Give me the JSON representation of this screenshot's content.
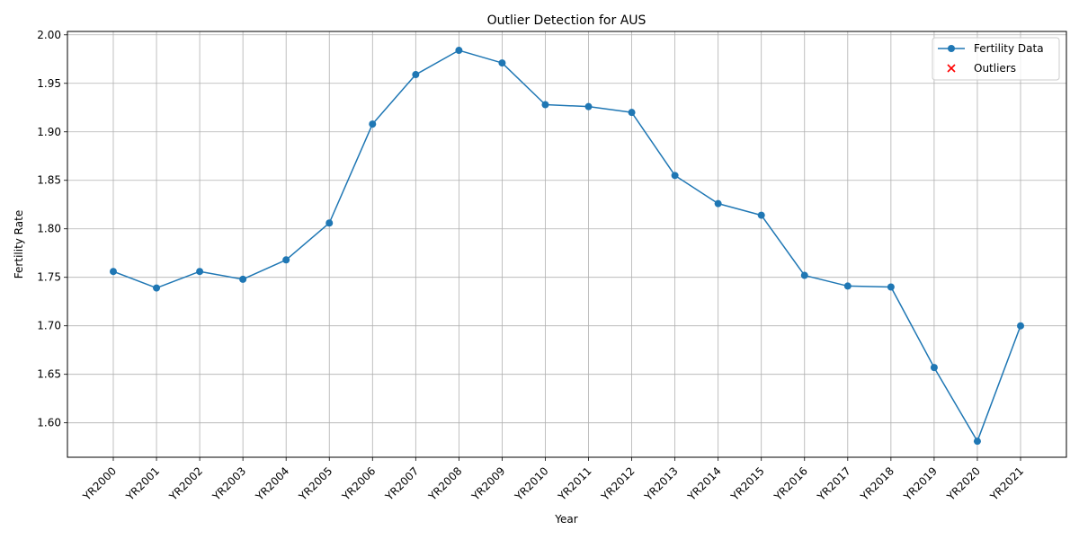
{
  "chart_data": {
    "type": "line",
    "title": "Outlier Detection for AUS",
    "xlabel": "Year",
    "ylabel": "Fertility Rate",
    "categories": [
      "YR2000",
      "YR2001",
      "YR2002",
      "YR2003",
      "YR2004",
      "YR2005",
      "YR2006",
      "YR2007",
      "YR2008",
      "YR2009",
      "YR2010",
      "YR2011",
      "YR2012",
      "YR2013",
      "YR2014",
      "YR2015",
      "YR2016",
      "YR2017",
      "YR2018",
      "YR2019",
      "YR2020",
      "YR2021"
    ],
    "series": [
      {
        "name": "Fertility Data",
        "color": "#1f77b4",
        "values": [
          1.756,
          1.739,
          1.756,
          1.748,
          1.768,
          1.806,
          1.908,
          1.959,
          1.984,
          1.971,
          1.928,
          1.926,
          1.92,
          1.855,
          1.826,
          1.814,
          1.752,
          1.741,
          1.74,
          1.657,
          1.581,
          1.7
        ]
      }
    ],
    "outliers": {
      "name": "Outliers",
      "color": "#ff0000",
      "marker": "x",
      "points": []
    },
    "ylim": [
      1.5645,
      2.0035
    ],
    "yticks": [
      "1.60",
      "1.65",
      "1.70",
      "1.75",
      "1.80",
      "1.85",
      "1.90",
      "1.95",
      "2.00"
    ],
    "ytick_values": [
      1.6,
      1.65,
      1.7,
      1.75,
      1.8,
      1.85,
      1.9,
      1.95,
      2.0
    ],
    "grid": true,
    "legend": "top-right"
  }
}
